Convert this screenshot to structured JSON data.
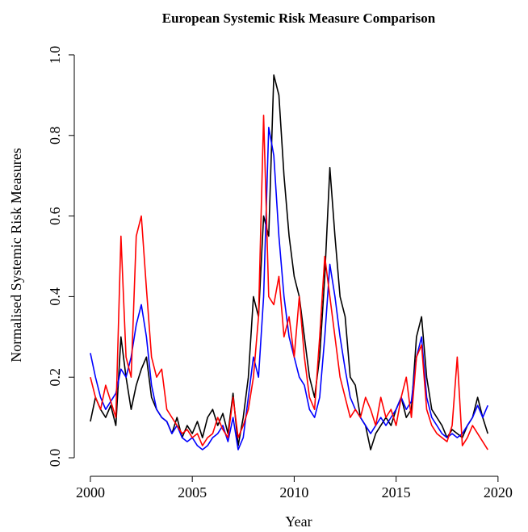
{
  "chart_data": {
    "type": "line",
    "title": "European Systemic Risk Measure Comparison",
    "xlabel": "Year",
    "ylabel": "Normalised Systemic Risk Measures",
    "x": [
      2000,
      2000.25,
      2000.5,
      2000.75,
      2001,
      2001.25,
      2001.5,
      2001.75,
      2002,
      2002.25,
      2002.5,
      2002.75,
      2003,
      2003.25,
      2003.5,
      2003.75,
      2004,
      2004.25,
      2004.5,
      2004.75,
      2005,
      2005.25,
      2005.5,
      2005.75,
      2006,
      2006.25,
      2006.5,
      2006.75,
      2007,
      2007.25,
      2007.5,
      2007.75,
      2008,
      2008.25,
      2008.5,
      2008.75,
      2009,
      2009.25,
      2009.5,
      2009.75,
      2010,
      2010.25,
      2010.5,
      2010.75,
      2011,
      2011.25,
      2011.5,
      2011.75,
      2012,
      2012.25,
      2012.5,
      2012.75,
      2013,
      2013.25,
      2013.5,
      2013.75,
      2014,
      2014.25,
      2014.5,
      2014.75,
      2015,
      2015.25,
      2015.5,
      2015.75,
      2016,
      2016.25,
      2016.5,
      2016.75,
      2017,
      2017.25,
      2017.5,
      2017.75,
      2018,
      2018.25,
      2018.5,
      2018.75,
      2019,
      2019.25,
      2019.5
    ],
    "series": [
      {
        "color": "#000000",
        "values": [
          0.09,
          0.15,
          0.12,
          0.1,
          0.13,
          0.08,
          0.3,
          0.2,
          0.12,
          0.18,
          0.22,
          0.25,
          0.15,
          0.12,
          0.1,
          0.09,
          0.06,
          0.1,
          0.05,
          0.08,
          0.06,
          0.09,
          0.05,
          0.1,
          0.12,
          0.08,
          0.11,
          0.06,
          0.16,
          0.03,
          0.1,
          0.2,
          0.4,
          0.35,
          0.6,
          0.55,
          0.95,
          0.9,
          0.7,
          0.55,
          0.45,
          0.4,
          0.3,
          0.2,
          0.15,
          0.25,
          0.45,
          0.72,
          0.55,
          0.4,
          0.35,
          0.2,
          0.18,
          0.1,
          0.08,
          0.02,
          0.06,
          0.08,
          0.1,
          0.08,
          0.12,
          0.15,
          0.1,
          0.12,
          0.3,
          0.35,
          0.2,
          0.12,
          0.1,
          0.08,
          0.05,
          0.07,
          0.06,
          0.05,
          0.08,
          0.1,
          0.15,
          0.1,
          0.06
        ]
      },
      {
        "color": "#0000ff",
        "values": [
          0.26,
          0.2,
          0.15,
          0.12,
          0.14,
          0.16,
          0.22,
          0.2,
          0.25,
          0.33,
          0.38,
          0.3,
          0.18,
          0.12,
          0.1,
          0.09,
          0.06,
          0.08,
          0.05,
          0.04,
          0.05,
          0.03,
          0.02,
          0.03,
          0.05,
          0.06,
          0.08,
          0.04,
          0.1,
          0.02,
          0.05,
          0.15,
          0.25,
          0.2,
          0.4,
          0.82,
          0.75,
          0.55,
          0.4,
          0.3,
          0.25,
          0.2,
          0.18,
          0.12,
          0.1,
          0.15,
          0.3,
          0.48,
          0.4,
          0.3,
          0.22,
          0.15,
          0.12,
          0.1,
          0.08,
          0.06,
          0.08,
          0.1,
          0.08,
          0.1,
          0.12,
          0.15,
          0.12,
          0.14,
          0.25,
          0.3,
          0.15,
          0.1,
          0.08,
          0.06,
          0.05,
          0.06,
          0.05,
          0.06,
          0.08,
          0.1,
          0.13,
          0.1,
          0.13
        ]
      },
      {
        "color": "#ff0000",
        "values": [
          0.2,
          0.15,
          0.12,
          0.18,
          0.14,
          0.1,
          0.55,
          0.25,
          0.2,
          0.55,
          0.6,
          0.42,
          0.25,
          0.2,
          0.22,
          0.12,
          0.1,
          0.08,
          0.06,
          0.07,
          0.05,
          0.06,
          0.03,
          0.05,
          0.06,
          0.1,
          0.07,
          0.05,
          0.15,
          0.05,
          0.08,
          0.12,
          0.2,
          0.35,
          0.85,
          0.4,
          0.38,
          0.45,
          0.3,
          0.35,
          0.25,
          0.4,
          0.25,
          0.15,
          0.12,
          0.3,
          0.5,
          0.4,
          0.3,
          0.2,
          0.15,
          0.1,
          0.12,
          0.1,
          0.15,
          0.12,
          0.08,
          0.15,
          0.1,
          0.12,
          0.08,
          0.15,
          0.2,
          0.1,
          0.25,
          0.28,
          0.12,
          0.08,
          0.06,
          0.05,
          0.04,
          0.08,
          0.25,
          0.03,
          0.05,
          0.08,
          0.06,
          0.04,
          0.02
        ]
      }
    ],
    "xlim": [
      1999.21,
      2020.6
    ],
    "xticks": [
      2000,
      2005,
      2010,
      2015,
      2020
    ],
    "ylim": [
      -0.04,
      1.04
    ],
    "yticks": [
      {
        "value": 0,
        "label": "0.0"
      },
      0.2,
      0.4,
      0.6,
      0.8,
      {
        "value": 1,
        "label": "1.0"
      }
    ]
  }
}
